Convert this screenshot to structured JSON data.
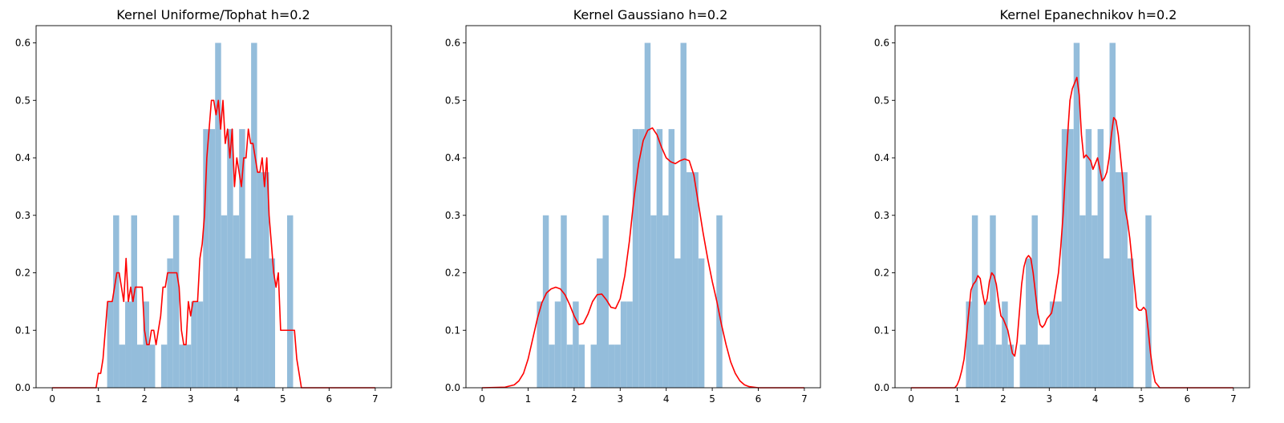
{
  "chart_data": [
    {
      "type": "bar",
      "title": "Kernel Uniforme/Tophat h=0.2",
      "xlim": [
        -0.35,
        7.35
      ],
      "ylim": [
        0,
        0.63
      ],
      "xticks": [
        0,
        1,
        2,
        3,
        4,
        5,
        6,
        7
      ],
      "yticks": [
        0.0,
        0.1,
        0.2,
        0.3,
        0.4,
        0.5,
        0.6
      ],
      "bar_color": "#94bddb",
      "line_color": "#ff0000",
      "histogram": {
        "bins": [
          [
            1.19,
            1.32
          ],
          [
            1.32,
            1.45
          ],
          [
            1.45,
            1.58
          ],
          [
            1.58,
            1.71
          ],
          [
            1.71,
            1.84
          ],
          [
            1.84,
            1.97
          ],
          [
            1.97,
            2.1
          ],
          [
            2.1,
            2.23
          ],
          [
            2.23,
            2.36
          ],
          [
            2.36,
            2.49
          ],
          [
            2.49,
            2.62
          ],
          [
            2.62,
            2.75
          ],
          [
            2.75,
            2.88
          ],
          [
            2.88,
            3.01
          ],
          [
            3.01,
            3.14
          ],
          [
            3.14,
            3.27
          ],
          [
            3.27,
            3.4
          ],
          [
            3.4,
            3.53
          ],
          [
            3.53,
            3.66
          ],
          [
            3.66,
            3.79
          ],
          [
            3.79,
            3.92
          ],
          [
            3.92,
            4.05
          ],
          [
            4.05,
            4.18
          ],
          [
            4.18,
            4.31
          ],
          [
            4.31,
            4.44
          ],
          [
            4.44,
            4.57
          ],
          [
            4.57,
            4.7
          ],
          [
            4.7,
            4.83
          ],
          [
            4.83,
            4.96
          ],
          [
            4.96,
            5.09
          ],
          [
            5.09,
            5.22
          ]
        ],
        "values": [
          0.15,
          0.3,
          0.075,
          0.15,
          0.3,
          0.075,
          0.15,
          0.075,
          0,
          0.075,
          0.225,
          0.3,
          0.075,
          0.075,
          0.15,
          0.15,
          0.45,
          0.45,
          0.6,
          0.3,
          0.45,
          0.3,
          0.45,
          0.225,
          0.6,
          0.375,
          0.375,
          0.225,
          0,
          0,
          0.3
        ]
      },
      "kde": {
        "x": [
          0.0,
          0.95,
          1.0,
          1.05,
          1.1,
          1.15,
          1.2,
          1.25,
          1.3,
          1.35,
          1.4,
          1.45,
          1.5,
          1.55,
          1.6,
          1.65,
          1.7,
          1.75,
          1.8,
          1.85,
          1.9,
          1.95,
          2.0,
          2.05,
          2.1,
          2.15,
          2.2,
          2.25,
          2.3,
          2.35,
          2.4,
          2.45,
          2.5,
          2.55,
          2.6,
          2.65,
          2.7,
          2.75,
          2.8,
          2.85,
          2.9,
          2.95,
          3.0,
          3.05,
          3.1,
          3.15,
          3.2,
          3.25,
          3.3,
          3.35,
          3.4,
          3.45,
          3.5,
          3.55,
          3.6,
          3.65,
          3.7,
          3.75,
          3.8,
          3.85,
          3.9,
          3.95,
          4.0,
          4.05,
          4.1,
          4.15,
          4.2,
          4.25,
          4.3,
          4.35,
          4.4,
          4.45,
          4.5,
          4.55,
          4.6,
          4.65,
          4.7,
          4.75,
          4.8,
          4.85,
          4.9,
          4.95,
          5.0,
          5.05,
          5.1,
          5.15,
          5.2,
          5.25,
          5.3,
          5.35,
          5.4,
          7.0
        ],
        "y": [
          0,
          0,
          0.025,
          0.025,
          0.05,
          0.1,
          0.15,
          0.15,
          0.15,
          0.175,
          0.2,
          0.2,
          0.175,
          0.15,
          0.225,
          0.15,
          0.175,
          0.15,
          0.175,
          0.175,
          0.175,
          0.175,
          0.1,
          0.075,
          0.075,
          0.1,
          0.1,
          0.075,
          0.1,
          0.125,
          0.175,
          0.175,
          0.2,
          0.2,
          0.2,
          0.2,
          0.2,
          0.175,
          0.1,
          0.075,
          0.075,
          0.15,
          0.125,
          0.15,
          0.15,
          0.15,
          0.225,
          0.25,
          0.3,
          0.4,
          0.45,
          0.5,
          0.5,
          0.475,
          0.5,
          0.45,
          0.5,
          0.425,
          0.45,
          0.4,
          0.45,
          0.35,
          0.4,
          0.375,
          0.35,
          0.4,
          0.4,
          0.45,
          0.425,
          0.425,
          0.4,
          0.375,
          0.375,
          0.4,
          0.35,
          0.4,
          0.3,
          0.25,
          0.2,
          0.175,
          0.2,
          0.1,
          0.1,
          0.1,
          0.1,
          0.1,
          0.1,
          0.1,
          0.05,
          0.025,
          0,
          0
        ]
      }
    },
    {
      "type": "bar",
      "title": "Kernel Gaussiano h=0.2",
      "xlim": [
        -0.35,
        7.35
      ],
      "ylim": [
        0,
        0.63
      ],
      "xticks": [
        0,
        1,
        2,
        3,
        4,
        5,
        6,
        7
      ],
      "yticks": [
        0.0,
        0.1,
        0.2,
        0.3,
        0.4,
        0.5,
        0.6
      ],
      "bar_color": "#94bddb",
      "line_color": "#ff0000",
      "histogram": {
        "bins": [
          [
            1.19,
            1.32
          ],
          [
            1.32,
            1.45
          ],
          [
            1.45,
            1.58
          ],
          [
            1.58,
            1.71
          ],
          [
            1.71,
            1.84
          ],
          [
            1.84,
            1.97
          ],
          [
            1.97,
            2.1
          ],
          [
            2.1,
            2.23
          ],
          [
            2.23,
            2.36
          ],
          [
            2.36,
            2.49
          ],
          [
            2.49,
            2.62
          ],
          [
            2.62,
            2.75
          ],
          [
            2.75,
            2.88
          ],
          [
            2.88,
            3.01
          ],
          [
            3.01,
            3.14
          ],
          [
            3.14,
            3.27
          ],
          [
            3.27,
            3.4
          ],
          [
            3.4,
            3.53
          ],
          [
            3.53,
            3.66
          ],
          [
            3.66,
            3.79
          ],
          [
            3.79,
            3.92
          ],
          [
            3.92,
            4.05
          ],
          [
            4.05,
            4.18
          ],
          [
            4.18,
            4.31
          ],
          [
            4.31,
            4.44
          ],
          [
            4.44,
            4.57
          ],
          [
            4.57,
            4.7
          ],
          [
            4.7,
            4.83
          ],
          [
            4.83,
            4.96
          ],
          [
            4.96,
            5.09
          ],
          [
            5.09,
            5.22
          ]
        ],
        "values": [
          0.15,
          0.3,
          0.075,
          0.15,
          0.3,
          0.075,
          0.15,
          0.075,
          0,
          0.075,
          0.225,
          0.3,
          0.075,
          0.075,
          0.15,
          0.15,
          0.45,
          0.45,
          0.6,
          0.3,
          0.45,
          0.3,
          0.45,
          0.225,
          0.6,
          0.375,
          0.375,
          0.225,
          0,
          0,
          0.3
        ]
      },
      "kde": {
        "x": [
          0.0,
          0.5,
          0.7,
          0.8,
          0.9,
          1.0,
          1.1,
          1.2,
          1.3,
          1.4,
          1.5,
          1.6,
          1.7,
          1.8,
          1.9,
          2.0,
          2.1,
          2.2,
          2.3,
          2.4,
          2.5,
          2.6,
          2.7,
          2.8,
          2.9,
          3.0,
          3.1,
          3.2,
          3.3,
          3.4,
          3.5,
          3.6,
          3.7,
          3.8,
          3.9,
          4.0,
          4.1,
          4.2,
          4.3,
          4.4,
          4.5,
          4.6,
          4.7,
          4.8,
          4.9,
          5.0,
          5.1,
          5.2,
          5.3,
          5.4,
          5.5,
          5.6,
          5.7,
          5.8,
          6.0,
          7.0
        ],
        "y": [
          0,
          0.001,
          0.005,
          0.012,
          0.025,
          0.05,
          0.085,
          0.12,
          0.148,
          0.165,
          0.172,
          0.175,
          0.172,
          0.162,
          0.145,
          0.125,
          0.11,
          0.112,
          0.128,
          0.15,
          0.162,
          0.163,
          0.153,
          0.14,
          0.138,
          0.155,
          0.195,
          0.255,
          0.33,
          0.39,
          0.43,
          0.448,
          0.452,
          0.44,
          0.418,
          0.4,
          0.393,
          0.39,
          0.395,
          0.398,
          0.395,
          0.37,
          0.32,
          0.27,
          0.225,
          0.185,
          0.15,
          0.11,
          0.075,
          0.045,
          0.025,
          0.012,
          0.005,
          0.002,
          0,
          0
        ]
      }
    },
    {
      "type": "bar",
      "title": "Kernel Epanechnikov h=0.2",
      "xlim": [
        -0.35,
        7.35
      ],
      "ylim": [
        0,
        0.63
      ],
      "xticks": [
        0,
        1,
        2,
        3,
        4,
        5,
        6,
        7
      ],
      "yticks": [
        0.0,
        0.1,
        0.2,
        0.3,
        0.4,
        0.5,
        0.6
      ],
      "bar_color": "#94bddb",
      "line_color": "#ff0000",
      "histogram": {
        "bins": [
          [
            1.19,
            1.32
          ],
          [
            1.32,
            1.45
          ],
          [
            1.45,
            1.58
          ],
          [
            1.58,
            1.71
          ],
          [
            1.71,
            1.84
          ],
          [
            1.84,
            1.97
          ],
          [
            1.97,
            2.1
          ],
          [
            2.1,
            2.23
          ],
          [
            2.23,
            2.36
          ],
          [
            2.36,
            2.49
          ],
          [
            2.49,
            2.62
          ],
          [
            2.62,
            2.75
          ],
          [
            2.75,
            2.88
          ],
          [
            2.88,
            3.01
          ],
          [
            3.01,
            3.14
          ],
          [
            3.14,
            3.27
          ],
          [
            3.27,
            3.4
          ],
          [
            3.4,
            3.53
          ],
          [
            3.53,
            3.66
          ],
          [
            3.66,
            3.79
          ],
          [
            3.79,
            3.92
          ],
          [
            3.92,
            4.05
          ],
          [
            4.05,
            4.18
          ],
          [
            4.18,
            4.31
          ],
          [
            4.31,
            4.44
          ],
          [
            4.44,
            4.57
          ],
          [
            4.57,
            4.7
          ],
          [
            4.7,
            4.83
          ],
          [
            4.83,
            4.96
          ],
          [
            4.96,
            5.09
          ],
          [
            5.09,
            5.22
          ]
        ],
        "values": [
          0.15,
          0.3,
          0.075,
          0.15,
          0.3,
          0.075,
          0.15,
          0.075,
          0,
          0.075,
          0.225,
          0.3,
          0.075,
          0.075,
          0.15,
          0.15,
          0.45,
          0.45,
          0.6,
          0.3,
          0.45,
          0.3,
          0.45,
          0.225,
          0.6,
          0.375,
          0.375,
          0.225,
          0,
          0,
          0.3
        ]
      },
      "kde": {
        "x": [
          0.0,
          0.95,
          1.0,
          1.05,
          1.1,
          1.15,
          1.2,
          1.25,
          1.3,
          1.35,
          1.4,
          1.45,
          1.5,
          1.55,
          1.6,
          1.65,
          1.7,
          1.75,
          1.8,
          1.85,
          1.9,
          1.95,
          2.0,
          2.05,
          2.1,
          2.15,
          2.2,
          2.25,
          2.3,
          2.35,
          2.4,
          2.45,
          2.5,
          2.55,
          2.6,
          2.65,
          2.7,
          2.75,
          2.8,
          2.85,
          2.9,
          2.95,
          3.0,
          3.05,
          3.1,
          3.15,
          3.2,
          3.25,
          3.3,
          3.35,
          3.4,
          3.45,
          3.5,
          3.55,
          3.6,
          3.65,
          3.7,
          3.75,
          3.8,
          3.85,
          3.9,
          3.95,
          4.0,
          4.05,
          4.1,
          4.15,
          4.2,
          4.25,
          4.3,
          4.35,
          4.4,
          4.45,
          4.5,
          4.55,
          4.6,
          4.65,
          4.7,
          4.75,
          4.8,
          4.85,
          4.9,
          4.95,
          5.0,
          5.05,
          5.1,
          5.15,
          5.2,
          5.25,
          5.3,
          5.35,
          5.4,
          7.0
        ],
        "y": [
          0,
          0,
          0.005,
          0.015,
          0.03,
          0.05,
          0.09,
          0.13,
          0.17,
          0.18,
          0.185,
          0.195,
          0.19,
          0.165,
          0.145,
          0.155,
          0.185,
          0.2,
          0.195,
          0.18,
          0.15,
          0.125,
          0.12,
          0.11,
          0.1,
          0.08,
          0.06,
          0.055,
          0.08,
          0.13,
          0.18,
          0.21,
          0.225,
          0.23,
          0.225,
          0.2,
          0.165,
          0.13,
          0.11,
          0.105,
          0.11,
          0.12,
          0.125,
          0.13,
          0.15,
          0.175,
          0.2,
          0.245,
          0.3,
          0.37,
          0.44,
          0.5,
          0.52,
          0.53,
          0.54,
          0.51,
          0.44,
          0.4,
          0.405,
          0.4,
          0.395,
          0.38,
          0.39,
          0.4,
          0.38,
          0.36,
          0.365,
          0.375,
          0.4,
          0.44,
          0.47,
          0.465,
          0.44,
          0.4,
          0.36,
          0.31,
          0.29,
          0.26,
          0.22,
          0.18,
          0.14,
          0.135,
          0.135,
          0.14,
          0.135,
          0.1,
          0.06,
          0.03,
          0.01,
          0.005,
          0,
          0
        ]
      }
    }
  ]
}
